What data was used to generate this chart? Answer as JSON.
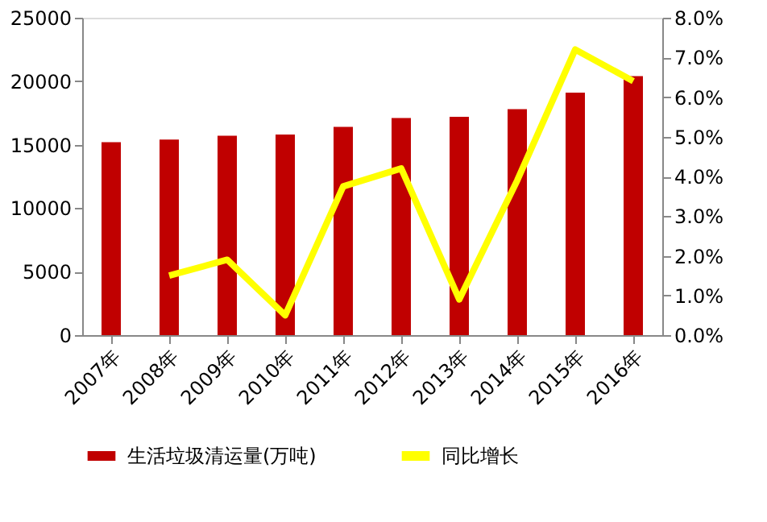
{
  "chart_data": {
    "type": "bar",
    "categories": [
      "2007年",
      "2008年",
      "2009年",
      "2010年",
      "2011年",
      "2012年",
      "2013年",
      "2014年",
      "2015年",
      "2016年"
    ],
    "series": [
      {
        "name": "生活垃圾清运量(万吨)",
        "color": "#c00000",
        "values": [
          15200,
          15400,
          15700,
          15800,
          16400,
          17100,
          17200,
          17800,
          19100,
          20400
        ]
      },
      {
        "name": "同比增长",
        "color": "#ffff00",
        "type": "line",
        "axis": "y2",
        "values": [
          null,
          1.5,
          1.9,
          0.5,
          3.75,
          4.2,
          0.9,
          3.9,
          7.2,
          6.4
        ]
      }
    ],
    "ylim": [
      0,
      25000
    ],
    "yticks": [
      0,
      5000,
      10000,
      15000,
      20000,
      25000
    ],
    "y2lim": [
      0,
      8
    ],
    "y2ticks": [
      {
        "value": 0,
        "label": "0.0%"
      },
      {
        "value": 1,
        "label": "1.0%"
      },
      {
        "value": 2,
        "label": "2.0%"
      },
      {
        "value": 3,
        "label": "3.0%"
      },
      {
        "value": 4,
        "label": "4.0%"
      },
      {
        "value": 5,
        "label": "5.0%"
      },
      {
        "value": 6,
        "label": "6.0%"
      },
      {
        "value": 7,
        "label": "7.0%"
      },
      {
        "value": 8,
        "label": "8.0%"
      }
    ],
    "grid": false,
    "legend": "bottom",
    "marker": "none"
  }
}
